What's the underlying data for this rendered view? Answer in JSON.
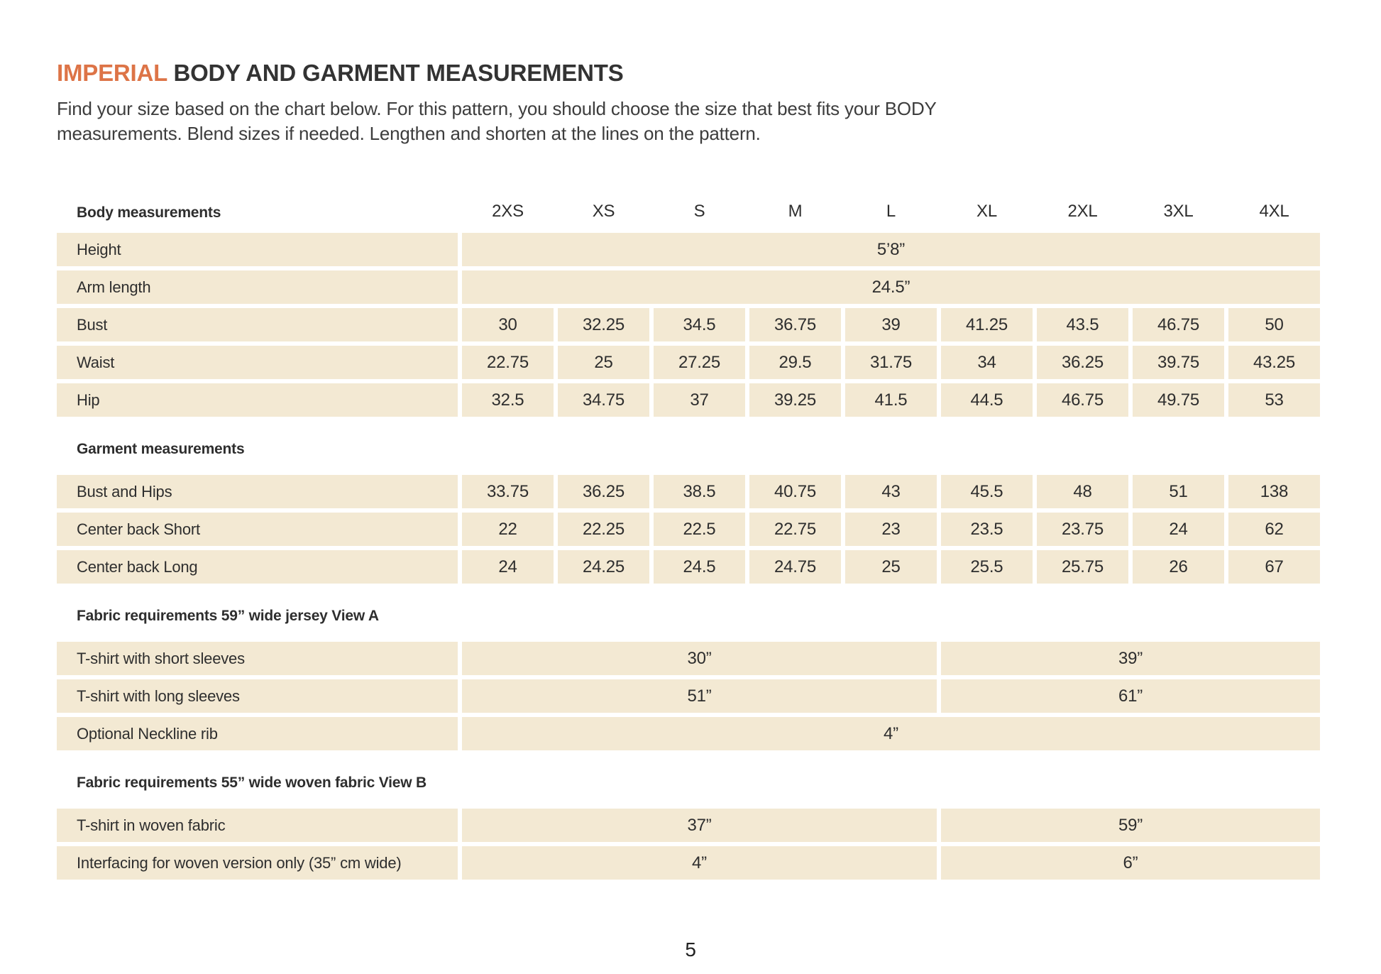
{
  "page": {
    "title_highlight": "IMPERIAL",
    "title_rest": " BODY AND GARMENT MEASUREMENTS",
    "intro": "Find your size based on the chart below. For this pattern, you should choose the size that best fits your BODY measurements. Blend sizes if needed. Lengthen and shorten at the lines on the pattern.",
    "page_number": "5"
  },
  "colors": {
    "accent_orange": "#DD7447",
    "cell_beige": "#F3E9D3",
    "text": "#2e2e2e"
  },
  "table": {
    "header_label": "Body measurements",
    "sizes": [
      "2XS",
      "XS",
      "S",
      "M",
      "L",
      "XL",
      "2XL",
      "3XL",
      "4XL"
    ],
    "body_rows": [
      {
        "label": "Height",
        "span_value": "5’8”"
      },
      {
        "label": "Arm length",
        "span_value": "24.5”"
      },
      {
        "label": "Bust",
        "values": [
          "30",
          "32.25",
          "34.5",
          "36.75",
          "39",
          "41.25",
          "43.5",
          "46.75",
          "50"
        ]
      },
      {
        "label": "Waist",
        "values": [
          "22.75",
          "25",
          "27.25",
          "29.5",
          "31.75",
          "34",
          "36.25",
          "39.75",
          "43.25"
        ]
      },
      {
        "label": "Hip",
        "values": [
          "32.5",
          "34.75",
          "37",
          "39.25",
          "41.5",
          "44.5",
          "46.75",
          "49.75",
          "53"
        ]
      }
    ],
    "garment_section_label": "Garment measurements",
    "garment_rows": [
      {
        "label": "Bust and Hips",
        "values": [
          "33.75",
          "36.25",
          "38.5",
          "40.75",
          "43",
          "45.5",
          "48",
          "51",
          "138"
        ]
      },
      {
        "label": "Center back Short",
        "values": [
          "22",
          "22.25",
          "22.5",
          "22.75",
          "23",
          "23.5",
          "23.75",
          "24",
          "62"
        ]
      },
      {
        "label": "Center back Long",
        "values": [
          "24",
          "24.25",
          "24.5",
          "24.75",
          "25",
          "25.5",
          "25.75",
          "26",
          "67"
        ]
      }
    ],
    "fabric_a_section_label": "Fabric requirements 59” wide jersey View A",
    "fabric_a_rows": [
      {
        "label": "T-shirt with short sleeves",
        "left": "30”",
        "right": "39”"
      },
      {
        "label": "T-shirt with long sleeves",
        "left": "51”",
        "right": "61”"
      },
      {
        "label": "Optional Neckline rib",
        "full": "4”"
      }
    ],
    "fabric_b_section_label": "Fabric requirements 55”  wide woven fabric View B",
    "fabric_b_rows": [
      {
        "label": "T-shirt in woven fabric",
        "left": "37”",
        "right": "59”"
      },
      {
        "label": "Interfacing for woven version only (35” cm wide)",
        "left": "4”",
        "right": "6”"
      }
    ]
  }
}
